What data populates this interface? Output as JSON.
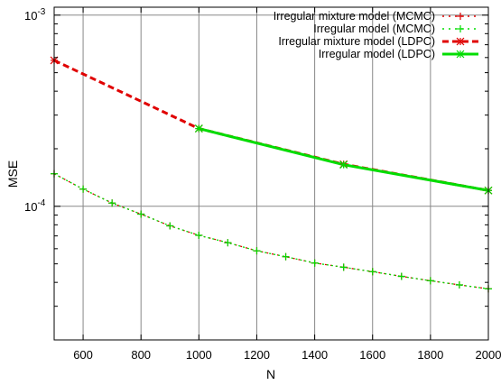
{
  "chart_data": {
    "type": "line",
    "title": "",
    "xlabel": "N",
    "ylabel": "MSE",
    "xlim": [
      500,
      2000
    ],
    "ylim": [
      2e-05,
      0.0011
    ],
    "yscale": "log",
    "grid": true,
    "legend_position": "top-right",
    "x_ticks": [
      600,
      800,
      1000,
      1200,
      1400,
      1600,
      1800,
      2000
    ],
    "y_ticks": [
      {
        "value": 0.001,
        "base": "10",
        "exp": "-3"
      },
      {
        "value": 0.0001,
        "base": "10",
        "exp": "-4"
      }
    ],
    "series": [
      {
        "name": "Irregular mixture model (MCMC)",
        "color": "#e00000",
        "style": "points",
        "marker": "plus",
        "x": [
          500,
          600,
          700,
          800,
          900,
          1000,
          1100,
          1200,
          1300,
          1400,
          1500,
          1600,
          1700,
          1800,
          1900,
          2000
        ],
        "y": [
          0.000148,
          0.000123,
          0.000104,
          9.1e-05,
          7.9e-05,
          7.05e-05,
          6.45e-05,
          5.85e-05,
          5.45e-05,
          5.05e-05,
          4.8e-05,
          4.55e-05,
          4.3e-05,
          4.08e-05,
          3.88e-05,
          3.7e-05
        ]
      },
      {
        "name": "Irregular model (MCMC)",
        "color": "#00dd00",
        "style": "points",
        "marker": "plus",
        "x": [
          500,
          600,
          700,
          800,
          900,
          1000,
          1100,
          1200,
          1300,
          1400,
          1500,
          1600,
          1700,
          1800,
          1900,
          2000
        ],
        "y": [
          0.000148,
          0.000123,
          0.000104,
          9.1e-05,
          7.9e-05,
          7.05e-05,
          6.45e-05,
          5.85e-05,
          5.45e-05,
          5.05e-05,
          4.8e-05,
          4.55e-05,
          4.3e-05,
          4.08e-05,
          3.88e-05,
          3.7e-05
        ]
      },
      {
        "name": "Irregular mixture model (LDPC)",
        "color": "#e00000",
        "style": "dashed",
        "marker": "star",
        "x": [
          500,
          1000,
          1500,
          2000
        ],
        "y": [
          0.00058,
          0.000255,
          0.000166,
          0.000121
        ]
      },
      {
        "name": "Irregular model (LDPC)",
        "color": "#00dd00",
        "style": "solid",
        "marker": "star",
        "x": [
          1000,
          1500,
          2000
        ],
        "y": [
          0.000255,
          0.000165,
          0.000121
        ]
      }
    ]
  }
}
